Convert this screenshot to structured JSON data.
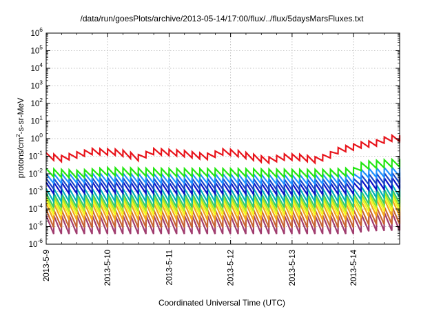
{
  "chart_data": {
    "type": "line",
    "title": "/data/run/goesPlots/archive/2013-05-14/17:00/flux/../flux/5daysMarsFluxes.txt",
    "xlabel": "Coordinated Universal Time (UTC)",
    "ylabel_html": [
      "protons/cm",
      "2",
      "-s-sr-MeV"
    ],
    "y_scale": "log",
    "ylim_exp": [
      -6,
      6
    ],
    "y_ticks": [
      {
        "base": "10",
        "exp": "-6",
        "value_exp": -6
      },
      {
        "base": "10",
        "exp": "-5",
        "value_exp": -5
      },
      {
        "base": "10",
        "exp": "-4",
        "value_exp": -4
      },
      {
        "base": "10",
        "exp": "-3",
        "value_exp": -3
      },
      {
        "base": "10",
        "exp": "-2",
        "value_exp": -2
      },
      {
        "base": "10",
        "exp": "-1",
        "value_exp": -1
      },
      {
        "base": "10",
        "exp": "0",
        "value_exp": 0
      },
      {
        "base": "10",
        "exp": "1",
        "value_exp": 1
      },
      {
        "base": "10",
        "exp": "2",
        "value_exp": 2
      },
      {
        "base": "10",
        "exp": "3",
        "value_exp": 3
      },
      {
        "base": "10",
        "exp": "4",
        "value_exp": 4
      },
      {
        "base": "10",
        "exp": "5",
        "value_exp": 5
      },
      {
        "base": "10",
        "exp": "6",
        "value_exp": 6
      }
    ],
    "x_range_days": [
      0,
      5.75
    ],
    "x_ticks": [
      {
        "label": "2013-5-9",
        "day": 0
      },
      {
        "label": "2013-5-10",
        "day": 1
      },
      {
        "label": "2013-5-11",
        "day": 2
      },
      {
        "label": "2013-5-12",
        "day": 3
      },
      {
        "label": "2013-5-13",
        "day": 4
      },
      {
        "label": "2013-5-14",
        "day": 5
      }
    ],
    "grid": true,
    "series": [
      {
        "color": "#e8141b",
        "tooth_days": 0.125,
        "amp": 0.35,
        "base_log": [
          [
            0,
            -1.0
          ],
          [
            0.25,
            -1.15
          ],
          [
            0.55,
            -0.9
          ],
          [
            0.75,
            -0.75
          ],
          [
            1.2,
            -0.8
          ],
          [
            1.5,
            -1.1
          ],
          [
            1.75,
            -0.75
          ],
          [
            2.2,
            -0.85
          ],
          [
            2.6,
            -1.05
          ],
          [
            2.9,
            -0.75
          ],
          [
            3.1,
            -0.85
          ],
          [
            3.4,
            -1.1
          ],
          [
            3.6,
            -1.25
          ],
          [
            3.9,
            -1.05
          ],
          [
            4.2,
            -1.1
          ],
          [
            4.35,
            -1.25
          ],
          [
            4.6,
            -1.0
          ],
          [
            4.7,
            -0.75
          ],
          [
            4.85,
            -0.6
          ],
          [
            5.0,
            -0.5
          ],
          [
            5.15,
            -0.35
          ],
          [
            5.35,
            -0.3
          ],
          [
            5.45,
            -0.15
          ],
          [
            5.6,
            0.0
          ],
          [
            5.75,
            0.0
          ]
        ]
      },
      {
        "color": "#22e612",
        "tooth_days": 0.125,
        "amp": 0.45,
        "base_log": [
          [
            0,
            -1.95
          ],
          [
            0.5,
            -2.05
          ],
          [
            1.0,
            -1.9
          ],
          [
            2.0,
            -1.95
          ],
          [
            3.0,
            -1.95
          ],
          [
            4.0,
            -2.0
          ],
          [
            4.6,
            -2.0
          ],
          [
            5.0,
            -1.9
          ],
          [
            5.15,
            -1.55
          ],
          [
            5.5,
            -1.45
          ],
          [
            5.75,
            -1.4
          ]
        ]
      },
      {
        "color": "#1e90ff",
        "tooth_days": 0.125,
        "amp": 0.55,
        "base_log": [
          [
            0,
            -2.3
          ],
          [
            1.0,
            -2.25
          ],
          [
            2.0,
            -2.3
          ],
          [
            3.0,
            -2.3
          ],
          [
            4.0,
            -2.35
          ],
          [
            5.0,
            -2.3
          ],
          [
            5.15,
            -2.0
          ],
          [
            5.75,
            -1.9
          ]
        ]
      },
      {
        "color": "#1846c8",
        "tooth_days": 0.125,
        "amp": 0.6,
        "base_log": [
          [
            0,
            -2.6
          ],
          [
            1.0,
            -2.55
          ],
          [
            2.0,
            -2.6
          ],
          [
            3.0,
            -2.6
          ],
          [
            4.0,
            -2.65
          ],
          [
            5.0,
            -2.6
          ],
          [
            5.15,
            -2.35
          ],
          [
            5.75,
            -2.25
          ]
        ]
      },
      {
        "color": "#0a12c8",
        "tooth_days": 0.125,
        "amp": 0.65,
        "base_log": [
          [
            0,
            -2.85
          ],
          [
            1.0,
            -2.8
          ],
          [
            2.0,
            -2.85
          ],
          [
            3.0,
            -2.85
          ],
          [
            4.0,
            -2.9
          ],
          [
            5.0,
            -2.85
          ],
          [
            5.15,
            -2.65
          ],
          [
            5.75,
            -2.55
          ]
        ]
      },
      {
        "color": "#00b2b8",
        "tooth_days": 0.125,
        "amp": 0.75,
        "base_log": [
          [
            0,
            -3.25
          ],
          [
            5.0,
            -3.25
          ],
          [
            5.2,
            -3.05
          ],
          [
            5.75,
            -3.0
          ]
        ]
      },
      {
        "color": "#35cc6a",
        "tooth_days": 0.125,
        "amp": 0.8,
        "base_log": [
          [
            0,
            -3.55
          ],
          [
            5.0,
            -3.55
          ],
          [
            5.2,
            -3.35
          ],
          [
            5.75,
            -3.3
          ]
        ]
      },
      {
        "color": "#b4e61e",
        "tooth_days": 0.125,
        "amp": 0.85,
        "base_log": [
          [
            0,
            -3.75
          ],
          [
            5.0,
            -3.75
          ],
          [
            5.2,
            -3.55
          ],
          [
            5.75,
            -3.5
          ]
        ]
      },
      {
        "color": "#f8f81e",
        "tooth_days": 0.125,
        "amp": 0.9,
        "base_log": [
          [
            0,
            -3.95
          ],
          [
            5.0,
            -3.95
          ],
          [
            5.2,
            -3.75
          ],
          [
            5.75,
            -3.7
          ]
        ]
      },
      {
        "color": "#f2a71c",
        "tooth_days": 0.125,
        "amp": 0.95,
        "base_log": [
          [
            0,
            -4.2
          ],
          [
            5.0,
            -4.2
          ],
          [
            5.2,
            -4.0
          ],
          [
            5.75,
            -3.95
          ]
        ]
      },
      {
        "color": "#c86432",
        "tooth_days": 0.125,
        "amp": 1.0,
        "base_log": [
          [
            0,
            -4.6
          ],
          [
            5.0,
            -4.6
          ],
          [
            5.2,
            -4.45
          ],
          [
            5.75,
            -4.4
          ]
        ]
      },
      {
        "color": "#a03c6e",
        "tooth_days": 0.125,
        "amp": 1.05,
        "base_log": [
          [
            0,
            -4.95
          ],
          [
            5.0,
            -4.95
          ],
          [
            5.2,
            -4.8
          ],
          [
            5.75,
            -4.75
          ]
        ]
      }
    ]
  }
}
